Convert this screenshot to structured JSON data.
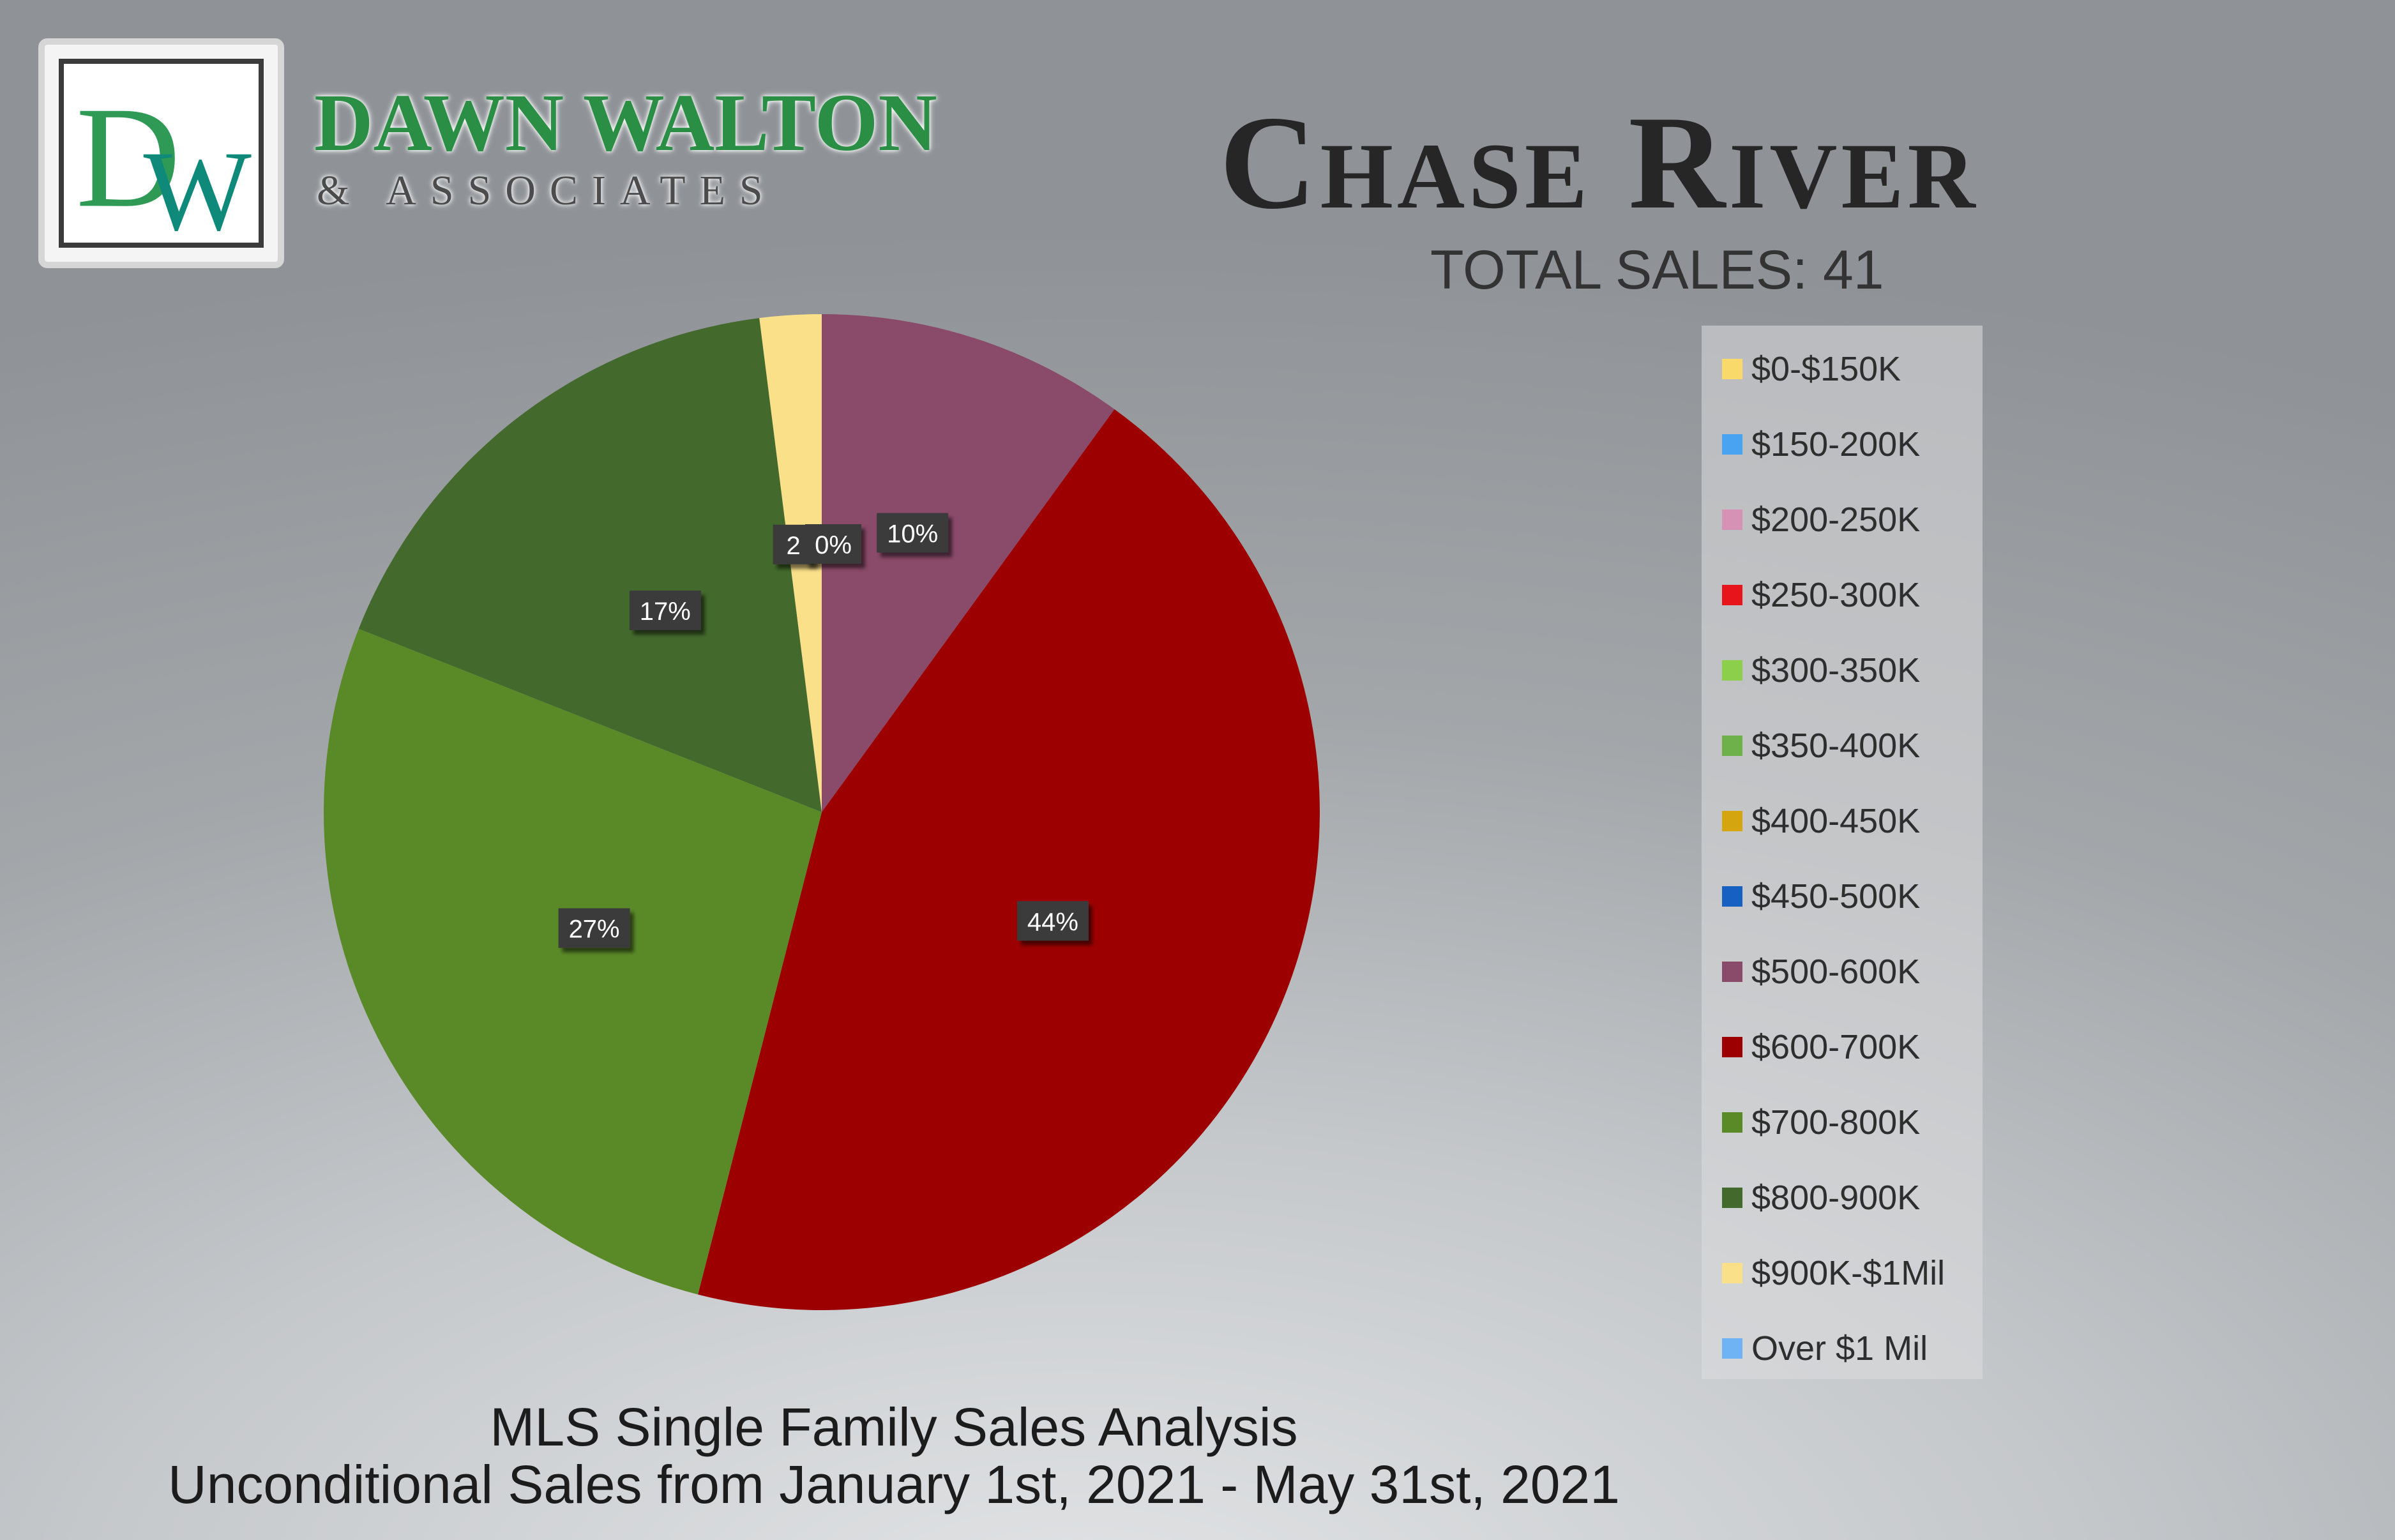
{
  "brand": {
    "logo_mark": "DW",
    "name": "DAWN WALTON",
    "subtitle": "& ASSOCIATES"
  },
  "header": {
    "title": "Chase River",
    "total_sales": "TOTAL SALES: 41"
  },
  "footer": {
    "line1": "MLS Single Family Sales Analysis",
    "line2": "Unconditional Sales from January 1st, 2021 - May 31st, 2021"
  },
  "colors": {
    "legend_swatches": [
      "#f9d96a",
      "#4aa3f0",
      "#d592b5",
      "#e8141c",
      "#8ccf4a",
      "#6eb04a",
      "#d4a50f",
      "#1560c0",
      "#8a4a69",
      "#9d0000",
      "#5a8a28",
      "#43692c",
      "#fbe08a",
      "#6fb3f4"
    ]
  },
  "legend": {
    "items": [
      {
        "label": "$0-$150K"
      },
      {
        "label": "$150-200K"
      },
      {
        "label": "$200-250K"
      },
      {
        "label": "$250-300K"
      },
      {
        "label": "$300-350K"
      },
      {
        "label": "$350-400K"
      },
      {
        "label": "$400-450K"
      },
      {
        "label": "$450-500K"
      },
      {
        "label": "$500-600K"
      },
      {
        "label": "$600-700K"
      },
      {
        "label": "$700-800K"
      },
      {
        "label": "$800-900K"
      },
      {
        "label": "$900K-$1Mil"
      },
      {
        "label": "Over $1 Mil"
      }
    ]
  },
  "chart_data": {
    "type": "pie",
    "categories": [
      "$500-600K",
      "$600-700K",
      "$700-800K",
      "$800-900K",
      "$900K-$1Mil",
      "Over $1 Mil"
    ],
    "values": [
      10,
      44,
      27,
      17,
      2,
      0
    ],
    "data_labels": [
      "10%",
      "44%",
      "27%",
      "17%",
      "2",
      "0%"
    ],
    "colors": [
      "#8a4a69",
      "#9d0000",
      "#5a8a28",
      "#43692c",
      "#fbe08a",
      "#6fb3f4"
    ],
    "legend_position": "right"
  }
}
